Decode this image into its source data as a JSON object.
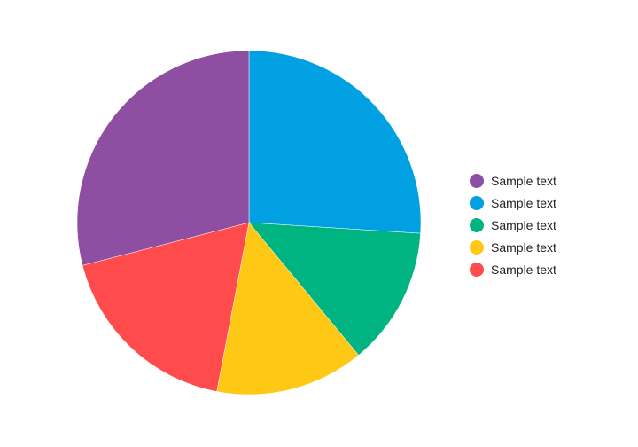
{
  "chart_data": {
    "type": "pie",
    "categories": [
      "Sample text",
      "Sample text",
      "Sample text",
      "Sample text",
      "Sample text"
    ],
    "values": [
      29,
      26,
      13,
      14,
      18
    ],
    "order_drawn_clockwise_from_top": [
      1,
      2,
      3,
      4,
      0
    ],
    "colors": [
      "#8e4ea2",
      "#00a0e2",
      "#00b482",
      "#ffc815",
      "#ff4b4b"
    ],
    "legend_position": "right",
    "title": ""
  }
}
